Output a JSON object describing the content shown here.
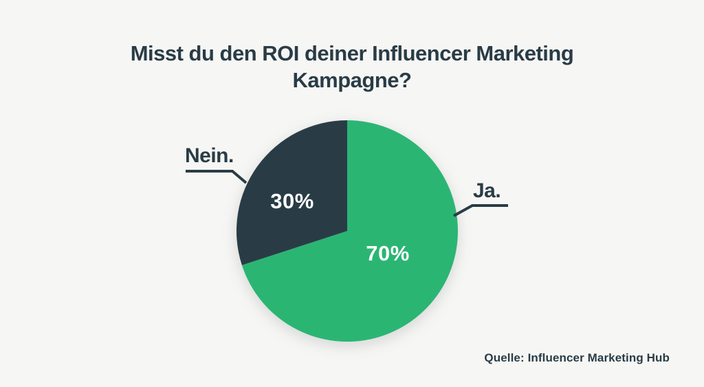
{
  "page": {
    "background": "#F6F6F4",
    "text_color": "#293C46"
  },
  "chart_data": {
    "type": "pie",
    "title": "Misst du den ROI deiner Influencer Marketing Kampagne?",
    "title_lines": [
      "Misst du den ROI deiner Influencer Marketing",
      "Kampagne?"
    ],
    "labels": [
      "Ja.",
      "Nein."
    ],
    "values": [
      70,
      30
    ],
    "value_labels": [
      "70%",
      "30%"
    ],
    "colors": [
      "#2BB573",
      "#293C46"
    ],
    "value_label_color": "#FFFFFF",
    "start_angle_deg": 0,
    "direction": "clockwise",
    "legend_position": "callout-labels",
    "source": "Quelle: Influencer Marketing Hub"
  }
}
